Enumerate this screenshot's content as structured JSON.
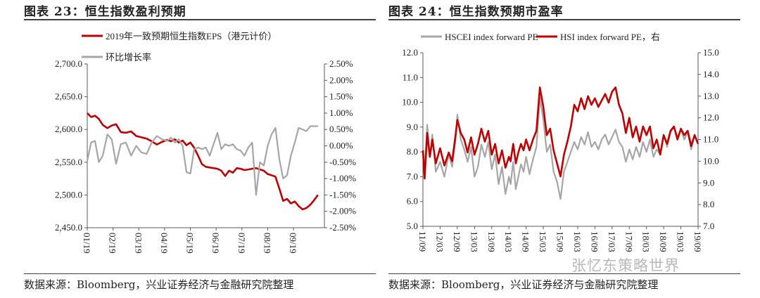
{
  "left": {
    "title": "图表 23：恒生指数盈利预期",
    "source": "数据来源：Bloomberg，兴业证券经济与金融研究院整理"
  },
  "right": {
    "title": "图表 24：恒生指数预期市盈率",
    "source": "数据来源：Bloomberg，兴业证券经济与金融研究院整理"
  },
  "watermark": "张忆东策略世界",
  "colors": {
    "red": "#c00000",
    "gray": "#a6a6a6",
    "axis": "#595959"
  },
  "chart_data": [
    {
      "type": "line",
      "title": "图表 23：恒生指数盈利预期",
      "x_ticks": [
        "01/19",
        "02/19",
        "03/19",
        "04/19",
        "05/19",
        "06/19",
        "07/19",
        "08/19",
        "09/19"
      ],
      "y_left": {
        "ylim": [
          2450,
          2700
        ],
        "ticks": [
          "2,450.0",
          "2,500.0",
          "2,550.0",
          "2,600.0",
          "2,650.0",
          "2,700.0"
        ]
      },
      "y_right": {
        "ylim": [
          -2.5,
          2.5
        ],
        "ticks": [
          "-2.50%",
          "-2.00%",
          "-1.50%",
          "-1.00%",
          "-0.50%",
          "0.00%",
          "0.50%",
          "1.00%",
          "1.50%",
          "2.00%",
          "2.50%"
        ]
      },
      "series": [
        {
          "name": "2019年一致预期恒生指数EPS（港元计价）",
          "axis": "left",
          "color": "#c00000",
          "x": [
            0,
            0.15,
            0.3,
            0.45,
            0.6,
            0.78,
            0.95,
            1.12,
            1.3,
            1.5,
            1.7,
            1.9,
            2.1,
            2.3,
            2.5,
            2.7,
            2.9,
            3.1,
            3.25,
            3.4,
            3.55,
            3.7,
            3.85,
            4.0,
            4.15,
            4.3,
            4.45,
            4.6,
            4.75,
            4.9,
            5.05,
            5.2,
            5.35,
            5.5,
            5.65,
            5.8,
            5.95,
            6.1,
            6.25,
            6.4,
            6.55,
            6.7,
            6.85,
            7.0,
            7.15,
            7.3,
            7.45,
            7.6,
            7.75,
            7.9,
            8.05,
            8.2,
            8.35,
            8.5,
            8.65,
            8.8,
            8.95
          ],
          "values": [
            2625,
            2619,
            2621,
            2616,
            2607,
            2602,
            2606,
            2608,
            2596,
            2595,
            2597,
            2590,
            2588,
            2586,
            2582,
            2577,
            2581,
            2584,
            2582,
            2585,
            2580,
            2583,
            2576,
            2580,
            2572,
            2560,
            2547,
            2543,
            2542,
            2541,
            2540,
            2537,
            2529,
            2537,
            2534,
            2541,
            2540,
            2538,
            2539,
            2540,
            2541,
            2539,
            2537,
            2532,
            2530,
            2528,
            2510,
            2491,
            2494,
            2487,
            2490,
            2483,
            2478,
            2480,
            2485,
            2492,
            2500
          ]
        },
        {
          "name": "环比增长率",
          "axis": "right",
          "color": "#a6a6a6",
          "x": [
            0,
            0.15,
            0.3,
            0.45,
            0.6,
            0.78,
            0.95,
            1.12,
            1.3,
            1.5,
            1.7,
            1.9,
            2.1,
            2.3,
            2.5,
            2.7,
            2.9,
            3.1,
            3.25,
            3.4,
            3.55,
            3.7,
            3.85,
            4.0,
            4.15,
            4.3,
            4.45,
            4.6,
            4.75,
            4.9,
            5.05,
            5.2,
            5.35,
            5.5,
            5.65,
            5.8,
            5.95,
            6.1,
            6.25,
            6.4,
            6.55,
            6.7,
            6.85,
            7.0,
            7.15,
            7.3,
            7.45,
            7.6,
            7.75,
            7.9,
            8.05,
            8.2,
            8.35,
            8.5,
            8.65,
            8.8,
            8.95
          ],
          "values": [
            -0.45,
            0.1,
            0.15,
            -0.5,
            -0.3,
            0.35,
            0.2,
            -0.55,
            0.05,
            0.1,
            -0.3,
            0.0,
            -0.2,
            -0.25,
            0.1,
            0.3,
            0.2,
            0.15,
            0.25,
            0.1,
            0.2,
            0.0,
            -0.8,
            -0.85,
            -0.1,
            -0.05,
            -0.1,
            -0.05,
            -0.3,
            0.05,
            0.4,
            -0.1,
            0.05,
            0.0,
            0.05,
            -0.1,
            -0.15,
            -0.3,
            -0.05,
            0.1,
            -1.5,
            -0.5,
            -0.6,
            0.0,
            0.35,
            0.55,
            -0.4,
            -1.0,
            -0.9,
            -0.3,
            0.1,
            0.55,
            0.5,
            0.45,
            0.6,
            0.6,
            0.6
          ]
        }
      ]
    },
    {
      "type": "line",
      "title": "图表 24：恒生指数预期市盈率",
      "x_ticks": [
        "11/09",
        "12/03",
        "12/09",
        "13/03",
        "13/09",
        "14/03",
        "14/09",
        "15/03",
        "15/09",
        "16/03",
        "16/09",
        "17/03",
        "17/09",
        "18/03",
        "18/09",
        "19/03",
        "19/09"
      ],
      "y_left": {
        "ylim": [
          5,
          12
        ],
        "ticks": [
          "5.0",
          "6.0",
          "7.0",
          "8.0",
          "9.0",
          "10.0",
          "11.0",
          "12.0"
        ]
      },
      "y_right": {
        "ylim": [
          7,
          15
        ],
        "ticks": [
          "7.0",
          "8.0",
          "9.0",
          "10.0",
          "11.0",
          "12.0",
          "13.0",
          "14.0",
          "15.0"
        ]
      },
      "series": [
        {
          "name": "HSCEI index forward PE",
          "axis": "left",
          "color": "#a6a6a6",
          "x": [
            0,
            0.1,
            0.25,
            0.4,
            0.55,
            0.75,
            1.0,
            1.25,
            1.5,
            1.7,
            1.9,
            2.0,
            2.2,
            2.4,
            2.6,
            2.8,
            3.0,
            3.2,
            3.4,
            3.6,
            3.8,
            4.0,
            4.2,
            4.4,
            4.6,
            4.8,
            5.0,
            5.1,
            5.25,
            5.4,
            5.55,
            5.7,
            5.85,
            6.0,
            6.2,
            6.4,
            6.6,
            6.8,
            7.0,
            7.2,
            7.4,
            7.6,
            7.8,
            8.0,
            8.2,
            8.4,
            8.6,
            8.8,
            9.0,
            9.2,
            9.4,
            9.6,
            9.8,
            10.0,
            10.2,
            10.4,
            10.6,
            10.8,
            11.0,
            11.2,
            11.4,
            11.6,
            11.8,
            12.0,
            12.2,
            12.4,
            12.6,
            12.8,
            13.0,
            13.2,
            13.4,
            13.6,
            13.8,
            14.0,
            14.2,
            14.4,
            14.6,
            14.8,
            15.0,
            15.2,
            15.4,
            15.6,
            15.8,
            16.0
          ],
          "values": [
            8.2,
            7.2,
            9.1,
            7.8,
            8.7,
            7.2,
            7.6,
            7.0,
            7.9,
            7.4,
            8.5,
            9.5,
            8.5,
            8.1,
            7.6,
            8.2,
            7.0,
            7.4,
            8.3,
            7.8,
            8.4,
            7.3,
            7.9,
            6.7,
            7.4,
            6.3,
            7.0,
            6.7,
            7.6,
            6.5,
            7.0,
            7.5,
            7.2,
            7.8,
            7.1,
            7.7,
            8.2,
            10.2,
            9.3,
            8.0,
            8.3,
            7.2,
            6.8,
            6.1,
            7.2,
            7.6,
            8.0,
            8.4,
            8.1,
            8.6,
            8.3,
            8.8,
            8.2,
            8.4,
            8.1,
            8.5,
            8.7,
            8.3,
            8.6,
            8.9,
            8.4,
            8.2,
            7.6,
            8.1,
            7.7,
            8.2,
            7.8,
            8.4,
            8.0,
            8.5,
            7.8,
            8.1,
            7.9,
            8.7,
            8.2,
            8.8,
            9.0,
            8.6,
            8.9,
            8.5,
            8.8,
            8.1,
            8.7,
            8.3
          ]
        },
        {
          "name": "HSI index forward PE，右",
          "axis": "right",
          "color": "#c00000",
          "x": [
            0,
            0.1,
            0.25,
            0.4,
            0.55,
            0.75,
            1.0,
            1.25,
            1.5,
            1.7,
            1.9,
            2.0,
            2.2,
            2.4,
            2.6,
            2.8,
            3.0,
            3.2,
            3.4,
            3.6,
            3.8,
            4.0,
            4.2,
            4.4,
            4.6,
            4.8,
            5.0,
            5.1,
            5.25,
            5.4,
            5.55,
            5.7,
            5.85,
            6.0,
            6.2,
            6.4,
            6.6,
            6.8,
            7.0,
            7.2,
            7.4,
            7.6,
            7.8,
            8.0,
            8.2,
            8.4,
            8.6,
            8.8,
            9.0,
            9.2,
            9.4,
            9.6,
            9.8,
            10.0,
            10.2,
            10.4,
            10.6,
            10.8,
            11.0,
            11.2,
            11.4,
            11.6,
            11.8,
            12.0,
            12.2,
            12.4,
            12.6,
            12.8,
            13.0,
            13.2,
            13.4,
            13.6,
            13.8,
            14.0,
            14.2,
            14.4,
            14.6,
            14.8,
            15.0,
            15.2,
            15.4,
            15.6,
            15.8,
            16.0
          ],
          "values": [
            10.5,
            9.2,
            11.3,
            10.2,
            11.0,
            9.9,
            10.6,
            9.8,
            10.4,
            10.0,
            11.2,
            11.9,
            11.3,
            11.0,
            10.4,
            11.1,
            10.3,
            10.8,
            11.5,
            10.9,
            11.4,
            10.3,
            10.8,
            9.9,
            10.5,
            9.7,
            10.2,
            10.0,
            10.8,
            9.9,
            10.4,
            10.8,
            10.5,
            11.0,
            10.5,
            11.0,
            11.4,
            13.4,
            12.5,
            11.2,
            11.5,
            10.5,
            9.9,
            9.3,
            10.3,
            10.9,
            11.6,
            12.6,
            12.3,
            12.9,
            12.4,
            13.0,
            12.6,
            12.9,
            12.5,
            12.8,
            13.1,
            12.7,
            13.2,
            13.4,
            12.6,
            12.2,
            11.3,
            12.0,
            11.1,
            11.6,
            10.9,
            11.6,
            11.2,
            11.6,
            10.6,
            11.0,
            10.3,
            11.2,
            10.8,
            11.4,
            11.6,
            11.0,
            11.5,
            11.2,
            11.4,
            10.7,
            11.2,
            10.8
          ]
        }
      ]
    }
  ]
}
